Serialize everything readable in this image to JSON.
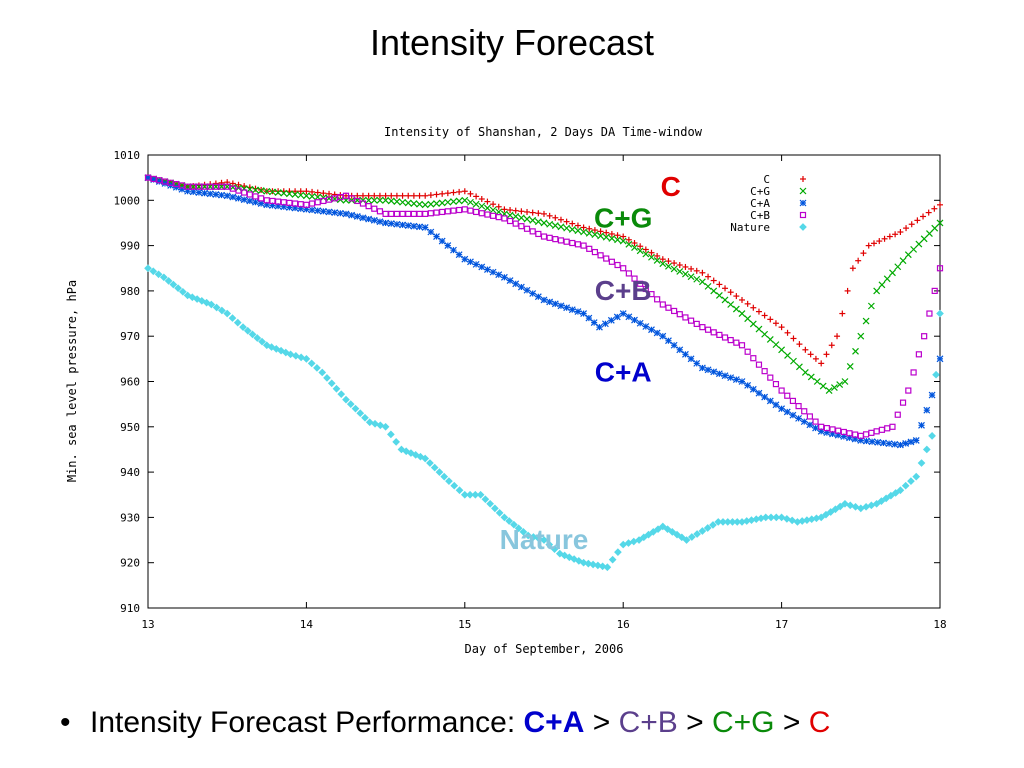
{
  "slide": {
    "title": "Intensity Forecast",
    "bullet": {
      "lead": "Intensity Forecast Performance: ",
      "ranking": [
        {
          "label": "C+A",
          "color": "#0000cc",
          "bold": true
        },
        {
          "label": "C+B",
          "color": "#5b3f8c",
          "bold": false
        },
        {
          "label": "C+G",
          "color": "#0a8a0a",
          "bold": false
        },
        {
          "label": "C",
          "color": "#e00000",
          "bold": false
        }
      ],
      "separator": " > "
    }
  },
  "chart_data": {
    "type": "scatter",
    "title": "Intensity of Shanshan, 2 Days DA Time-window",
    "xlabel": "Day of September, 2006",
    "ylabel": "Min. sea level pressure, hPa",
    "xlim": [
      13,
      18
    ],
    "ylim": [
      910,
      1010
    ],
    "xticks": [
      13,
      14,
      15,
      16,
      17,
      18
    ],
    "yticks": [
      910,
      920,
      930,
      940,
      950,
      960,
      970,
      980,
      990,
      1000,
      1010
    ],
    "legend_position": "top-right",
    "grid": false,
    "series": [
      {
        "name": "C",
        "color": "#e00000",
        "marker": "+",
        "points": [
          [
            13.0,
            1005
          ],
          [
            13.25,
            1003
          ],
          [
            13.5,
            1004
          ],
          [
            13.75,
            1002
          ],
          [
            14.0,
            1002
          ],
          [
            14.25,
            1001
          ],
          [
            14.5,
            1001
          ],
          [
            14.75,
            1001
          ],
          [
            15.0,
            1002
          ],
          [
            15.25,
            998
          ],
          [
            15.5,
            997
          ],
          [
            15.75,
            994
          ],
          [
            16.0,
            992
          ],
          [
            16.25,
            987
          ],
          [
            16.5,
            984
          ],
          [
            16.75,
            978
          ],
          [
            17.0,
            972
          ],
          [
            17.15,
            967
          ],
          [
            17.25,
            964
          ],
          [
            17.35,
            970
          ],
          [
            17.45,
            985
          ],
          [
            17.55,
            990
          ],
          [
            17.75,
            993
          ],
          [
            18.0,
            999
          ]
        ]
      },
      {
        "name": "C+G",
        "color": "#00aa00",
        "marker": "x",
        "points": [
          [
            13.0,
            1005
          ],
          [
            13.25,
            1003
          ],
          [
            13.5,
            1003
          ],
          [
            13.75,
            1002
          ],
          [
            14.0,
            1001
          ],
          [
            14.25,
            1000
          ],
          [
            14.5,
            1000
          ],
          [
            14.75,
            999
          ],
          [
            15.0,
            1000
          ],
          [
            15.25,
            997
          ],
          [
            15.5,
            995
          ],
          [
            15.75,
            993
          ],
          [
            16.0,
            991
          ],
          [
            16.25,
            986
          ],
          [
            16.5,
            982
          ],
          [
            16.75,
            975
          ],
          [
            17.0,
            967
          ],
          [
            17.15,
            962
          ],
          [
            17.3,
            958
          ],
          [
            17.4,
            960
          ],
          [
            17.5,
            970
          ],
          [
            17.6,
            980
          ],
          [
            17.8,
            988
          ],
          [
            18.0,
            995
          ]
        ]
      },
      {
        "name": "C+A",
        "color": "#0055dd",
        "marker": "*",
        "points": [
          [
            13.0,
            1005
          ],
          [
            13.25,
            1002
          ],
          [
            13.5,
            1001
          ],
          [
            13.75,
            999
          ],
          [
            14.0,
            998
          ],
          [
            14.25,
            997
          ],
          [
            14.5,
            995
          ],
          [
            14.75,
            994
          ],
          [
            15.0,
            987
          ],
          [
            15.25,
            983
          ],
          [
            15.5,
            978
          ],
          [
            15.75,
            975
          ],
          [
            15.85,
            972
          ],
          [
            16.0,
            975
          ],
          [
            16.25,
            970
          ],
          [
            16.5,
            963
          ],
          [
            16.75,
            960
          ],
          [
            17.0,
            954
          ],
          [
            17.25,
            949
          ],
          [
            17.5,
            947
          ],
          [
            17.75,
            946
          ],
          [
            17.85,
            947
          ],
          [
            17.95,
            957
          ],
          [
            18.0,
            965
          ]
        ]
      },
      {
        "name": "C+B",
        "color": "#bb00cc",
        "marker": "s",
        "points": [
          [
            13.0,
            1005
          ],
          [
            13.25,
            1003
          ],
          [
            13.5,
            1003
          ],
          [
            13.75,
            1000
          ],
          [
            14.0,
            999
          ],
          [
            14.25,
            1001
          ],
          [
            14.5,
            997
          ],
          [
            14.75,
            997
          ],
          [
            15.0,
            998
          ],
          [
            15.25,
            996
          ],
          [
            15.5,
            992
          ],
          [
            15.75,
            990
          ],
          [
            16.0,
            985
          ],
          [
            16.25,
            977
          ],
          [
            16.5,
            972
          ],
          [
            16.75,
            968
          ],
          [
            17.0,
            958
          ],
          [
            17.25,
            950
          ],
          [
            17.5,
            948
          ],
          [
            17.7,
            950
          ],
          [
            17.8,
            958
          ],
          [
            17.9,
            970
          ],
          [
            18.0,
            985
          ]
        ]
      },
      {
        "name": "Nature",
        "color": "#55d8e8",
        "marker": "d",
        "points": [
          [
            13.0,
            985
          ],
          [
            13.1,
            983
          ],
          [
            13.25,
            979
          ],
          [
            13.4,
            977
          ],
          [
            13.5,
            975
          ],
          [
            13.6,
            972
          ],
          [
            13.75,
            968
          ],
          [
            13.9,
            966
          ],
          [
            14.0,
            965
          ],
          [
            14.1,
            962
          ],
          [
            14.25,
            956
          ],
          [
            14.4,
            951
          ],
          [
            14.5,
            950
          ],
          [
            14.6,
            945
          ],
          [
            14.75,
            943
          ],
          [
            14.9,
            938
          ],
          [
            15.0,
            935
          ],
          [
            15.1,
            935
          ],
          [
            15.25,
            930
          ],
          [
            15.4,
            926
          ],
          [
            15.5,
            925
          ],
          [
            15.6,
            922
          ],
          [
            15.75,
            920
          ],
          [
            15.9,
            919
          ],
          [
            16.0,
            924
          ],
          [
            16.1,
            925
          ],
          [
            16.25,
            928
          ],
          [
            16.4,
            925
          ],
          [
            16.5,
            927
          ],
          [
            16.6,
            929
          ],
          [
            16.75,
            929
          ],
          [
            16.9,
            930
          ],
          [
            17.0,
            930
          ],
          [
            17.1,
            929
          ],
          [
            17.25,
            930
          ],
          [
            17.4,
            933
          ],
          [
            17.5,
            932
          ],
          [
            17.6,
            933
          ],
          [
            17.75,
            936
          ],
          [
            17.85,
            939
          ],
          [
            17.95,
            948
          ],
          [
            18.0,
            975
          ]
        ]
      }
    ],
    "annotations": [
      {
        "text": "C",
        "color": "#e00000",
        "x": 16.3,
        "y": 1001
      },
      {
        "text": "C+G",
        "color": "#0a8a0a",
        "x": 16.0,
        "y": 994
      },
      {
        "text": "C+B",
        "color": "#5b3f8c",
        "x": 16.0,
        "y": 978
      },
      {
        "text": "C+A",
        "color": "#0000cc",
        "x": 16.0,
        "y": 960
      },
      {
        "text": "Nature",
        "color": "#88c6dd",
        "x": 15.5,
        "y": 923
      }
    ]
  }
}
